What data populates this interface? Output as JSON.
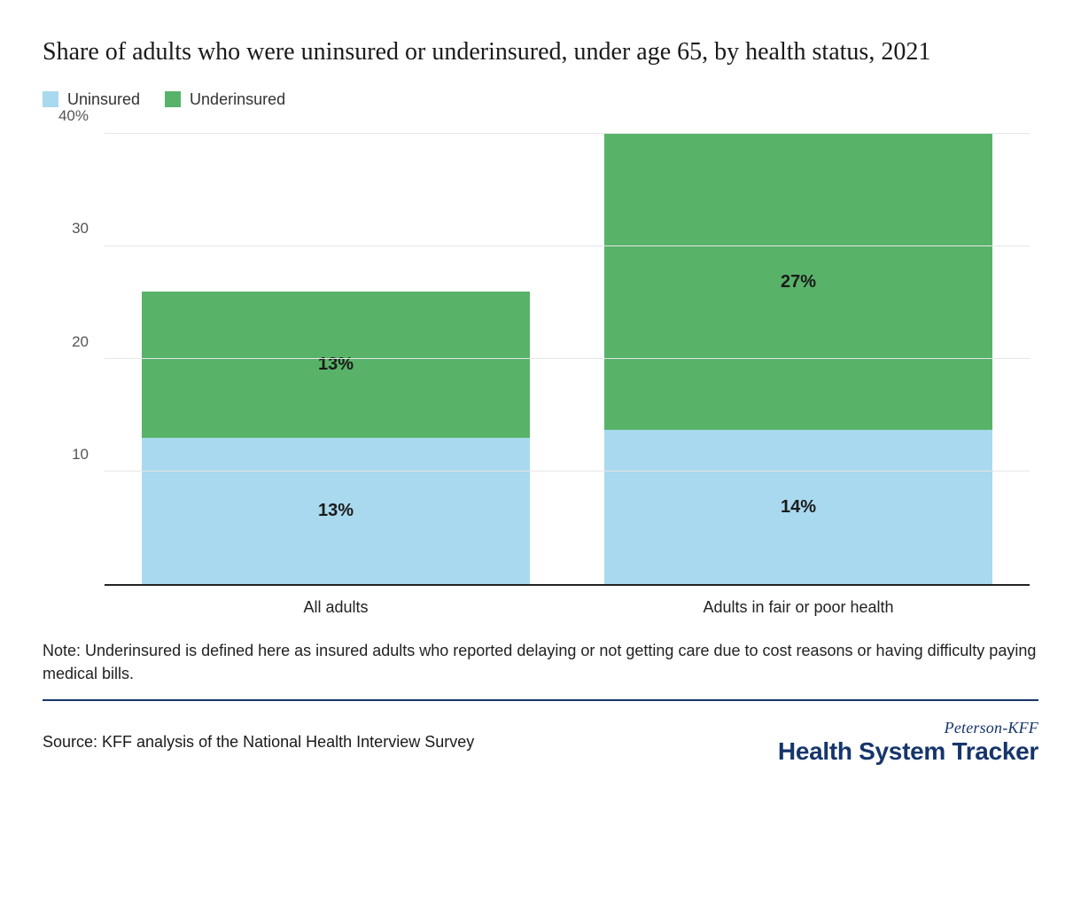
{
  "title": "Share of adults who were uninsured or underinsured, under age 65, by health status, 2021",
  "legend": {
    "uninsured": {
      "label": "Uninsured",
      "color": "#a9d9ef"
    },
    "underinsured": {
      "label": "Underinsured",
      "color": "#58b368"
    }
  },
  "chart": {
    "type": "stacked-bar",
    "y": {
      "min": 0,
      "max": 40,
      "ticks": [
        {
          "value": 10,
          "label": "10"
        },
        {
          "value": 20,
          "label": "20"
        },
        {
          "value": 30,
          "label": "30"
        },
        {
          "value": 40,
          "label": "40%"
        }
      ],
      "grid_color": "#e6e6e6"
    },
    "axis_color": "#222222",
    "background_color": "#ffffff",
    "categories": [
      {
        "label": "All adults",
        "segments": [
          {
            "series": "uninsured",
            "value": 13,
            "display": "13%"
          },
          {
            "series": "underinsured",
            "value": 13,
            "display": "13%"
          }
        ]
      },
      {
        "label": "Adults in fair or poor health",
        "segments": [
          {
            "series": "uninsured",
            "value": 14,
            "display": "14%"
          },
          {
            "series": "underinsured",
            "value": 27,
            "display": "27%"
          }
        ]
      }
    ],
    "bar_label_fontsize": 20,
    "bar_label_weight": 700,
    "axis_label_fontsize": 18,
    "title_fontsize": 28
  },
  "note": "Note: Underinsured is defined here as insured adults who reported delaying or not getting care due to cost reasons or having difficulty paying medical bills.",
  "source": "Source: KFF analysis of the National Health Interview Survey",
  "logo": {
    "top": "Peterson-KFF",
    "bottom": "Health System Tracker",
    "color": "#16356b"
  }
}
